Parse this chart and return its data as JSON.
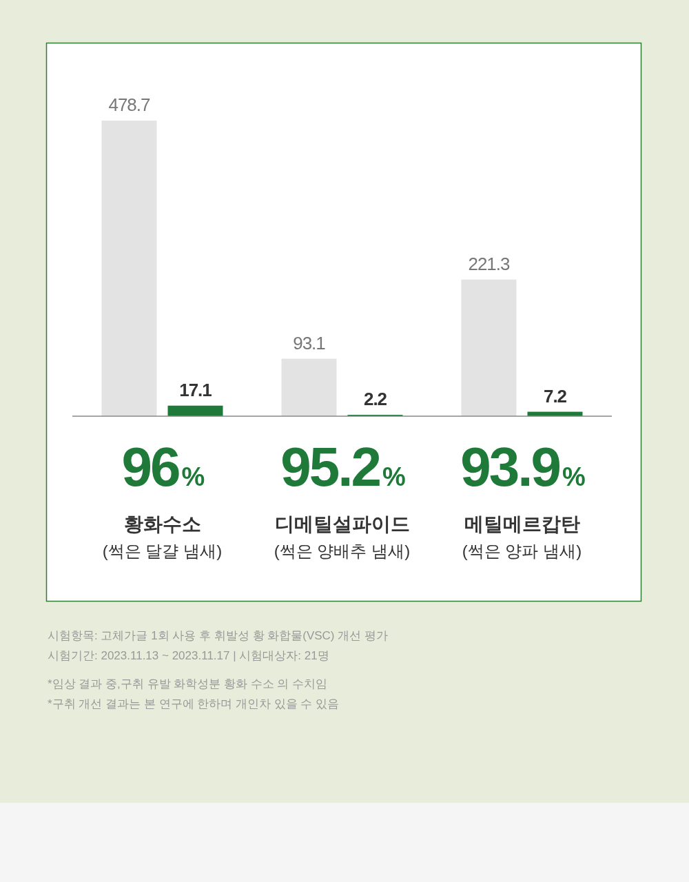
{
  "chart_data": {
    "type": "bar",
    "categories": [
      "황화수소\n(썩은 달걀 냄새)",
      "디메틸설파이드\n(썩은 양배추 냄새)",
      "메틸메르캅탄\n(썩은 양파 냄새)"
    ],
    "series": [
      {
        "color": "#e3e3e3",
        "values": [
          478.7,
          93.1,
          221.3
        ]
      },
      {
        "color": "#1f7a3a",
        "values": [
          17.1,
          2.2,
          7.2
        ]
      }
    ],
    "data_labels": true,
    "annotations": [
      "96%",
      "95.2%",
      "93.9%",
      "시험항목: 고체가글 1회 사용 후 휘발성 황 화합물(VSC) 개선 평가",
      "시험기간: 2023.11.13 ~ 2023.11.17 | 시험대상자: 21명",
      "*임상 결과 중,구취 유발 화학성분 황화 수소 의 수치임",
      "*구취 개선 결과는 본 연구에 한하며 개인차 있을 수 있음"
    ]
  }
}
